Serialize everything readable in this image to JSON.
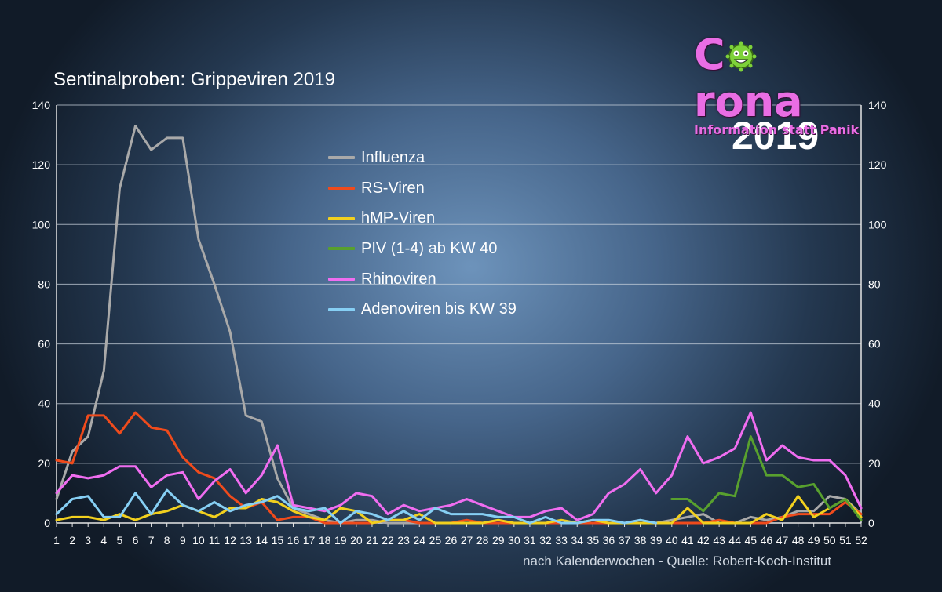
{
  "header": {
    "title": "Sentinalproben: Grippeviren 2019",
    "year_badge": "2019",
    "source_note": "nach Kalenderwochen - Quelle: Robert-Koch-Institut"
  },
  "logo": {
    "word_prefix": "C",
    "word_suffix": "rona",
    "tagline": "Information statt Panik",
    "color": "#e96de4"
  },
  "chart_data": {
    "type": "line",
    "title": "Sentinalproben: Grippeviren 2019",
    "xlabel": "nach Kalenderwochen",
    "ylabel": "",
    "ylim": [
      0,
      140
    ],
    "yticks": [
      0,
      20,
      40,
      60,
      80,
      100,
      120,
      140
    ],
    "x": [
      1,
      2,
      3,
      4,
      5,
      6,
      7,
      8,
      9,
      10,
      11,
      12,
      13,
      14,
      15,
      16,
      17,
      18,
      19,
      20,
      21,
      22,
      23,
      24,
      25,
      26,
      27,
      28,
      29,
      30,
      31,
      32,
      33,
      34,
      35,
      36,
      37,
      38,
      39,
      40,
      41,
      42,
      43,
      44,
      45,
      46,
      47,
      48,
      49,
      50,
      51,
      52
    ],
    "legend_position": "center-top",
    "series": [
      {
        "name": "Influenza",
        "color": "#a9a9a9",
        "values": [
          8,
          24,
          29,
          51,
          112,
          133,
          125,
          129,
          129,
          95,
          80,
          64,
          36,
          34,
          15,
          5,
          3,
          1,
          0,
          1,
          1,
          0,
          0,
          0,
          0,
          0,
          0,
          0,
          0,
          0,
          0,
          0,
          0,
          0,
          0,
          0,
          0,
          0,
          0,
          1,
          2,
          3,
          0,
          0,
          2,
          1,
          2,
          4,
          4,
          9,
          8,
          3
        ]
      },
      {
        "name": "RS-Viren",
        "color": "#f04b1c",
        "values": [
          21,
          20,
          36,
          36,
          30,
          37,
          32,
          31,
          22,
          17,
          15,
          9,
          5,
          7,
          1,
          2,
          2,
          0,
          0,
          0,
          0,
          1,
          1,
          0,
          0,
          0,
          1,
          0,
          0,
          0,
          0,
          0,
          0,
          0,
          0,
          0,
          0,
          0,
          0,
          0,
          0,
          0,
          1,
          0,
          0,
          0,
          2,
          3,
          3,
          3,
          7,
          3
        ]
      },
      {
        "name": "hMP-Viren",
        "color": "#f2d01e",
        "values": [
          1,
          2,
          2,
          1,
          3,
          1,
          3,
          4,
          6,
          4,
          2,
          5,
          5,
          8,
          7,
          4,
          2,
          1,
          5,
          4,
          0,
          1,
          1,
          3,
          0,
          0,
          0,
          0,
          1,
          0,
          0,
          0,
          1,
          0,
          1,
          0,
          0,
          0,
          0,
          0,
          5,
          0,
          0,
          0,
          0,
          3,
          1,
          9,
          2,
          5,
          8,
          2
        ]
      },
      {
        "name": "PIV (1-4) ab KW 40",
        "color": "#58a02e",
        "values": [
          null,
          null,
          null,
          null,
          null,
          null,
          null,
          null,
          null,
          null,
          null,
          null,
          null,
          null,
          null,
          null,
          null,
          null,
          null,
          null,
          null,
          null,
          null,
          null,
          null,
          null,
          null,
          null,
          null,
          null,
          null,
          null,
          null,
          null,
          null,
          null,
          null,
          null,
          null,
          8,
          8,
          4,
          10,
          9,
          29,
          16,
          16,
          12,
          13,
          5,
          8,
          1
        ]
      },
      {
        "name": "Rhinoviren",
        "color": "#f06df0",
        "values": [
          10,
          16,
          15,
          16,
          19,
          19,
          12,
          16,
          17,
          8,
          14,
          18,
          10,
          16,
          26,
          6,
          5,
          4,
          6,
          10,
          9,
          3,
          6,
          4,
          5,
          6,
          8,
          6,
          4,
          2,
          2,
          4,
          5,
          1,
          3,
          10,
          13,
          18,
          10,
          16,
          29,
          20,
          22,
          25,
          37,
          21,
          26,
          22,
          21,
          21,
          16,
          5
        ]
      },
      {
        "name": "Adenoviren bis KW 39",
        "color": "#86cff4",
        "values": [
          3,
          8,
          9,
          2,
          2,
          10,
          3,
          11,
          6,
          4,
          7,
          4,
          6,
          7,
          9,
          5,
          4,
          5,
          0,
          4,
          3,
          1,
          4,
          1,
          5,
          3,
          3,
          3,
          2,
          2,
          0,
          2,
          0,
          0,
          1,
          1,
          0,
          1,
          0,
          null,
          null,
          null,
          null,
          null,
          null,
          null,
          null,
          null,
          null,
          null,
          null,
          null
        ]
      }
    ]
  }
}
